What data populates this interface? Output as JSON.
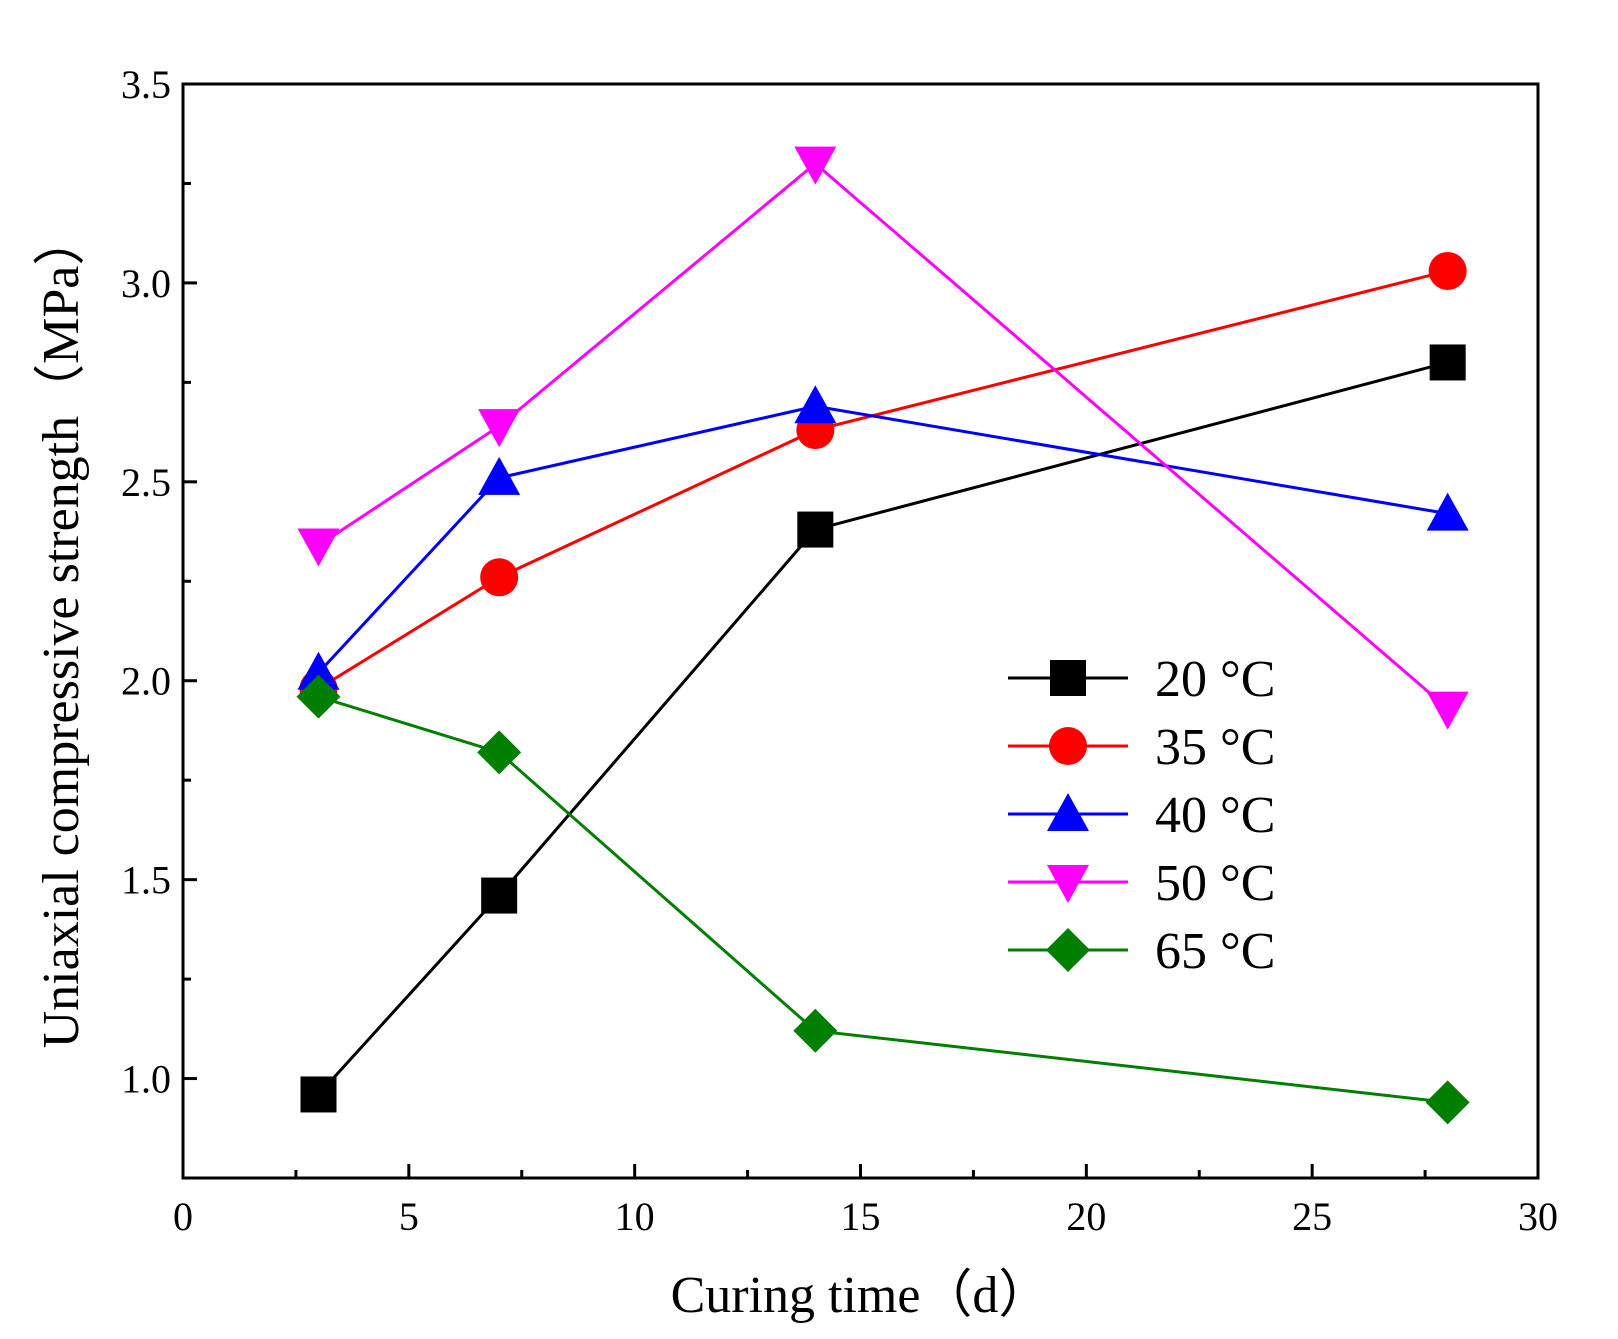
{
  "chart_data": {
    "type": "line",
    "title": "",
    "xlabel": "Curing time（d）",
    "ylabel": "Uniaxial compressive strength（MPa）",
    "xlim": [
      0,
      30
    ],
    "ylim": [
      0.75,
      3.5
    ],
    "x_ticks": [
      0,
      5,
      10,
      15,
      20,
      25,
      30
    ],
    "x_tick_labels": [
      "0",
      "5",
      "10",
      "15",
      "20",
      "25",
      "30"
    ],
    "y_ticks": [
      1.0,
      1.5,
      2.0,
      2.5,
      3.0,
      3.5
    ],
    "y_tick_labels": [
      "1.0",
      "1.5",
      "2.0",
      "2.5",
      "3.0",
      "3.5"
    ],
    "grid": false,
    "legend_position": "right",
    "x": [
      3,
      7,
      14,
      28
    ],
    "series": [
      {
        "name": "20 °C",
        "color": "#000000",
        "marker": "square",
        "values": [
          0.96,
          1.46,
          2.38,
          2.8
        ]
      },
      {
        "name": "35 °C",
        "color": "#ff0000",
        "marker": "circle",
        "values": [
          1.98,
          2.26,
          2.63,
          3.03
        ]
      },
      {
        "name": "40 °C",
        "color": "#0000ff",
        "marker": "triangle-up",
        "values": [
          2.02,
          2.51,
          2.69,
          2.42
        ]
      },
      {
        "name": "50 °C",
        "color": "#ff00ff",
        "marker": "triangle-down",
        "values": [
          2.34,
          2.64,
          3.3,
          1.93
        ]
      },
      {
        "name": "65 °C",
        "color": "#007f00",
        "marker": "diamond",
        "values": [
          1.96,
          1.82,
          1.12,
          0.94
        ]
      }
    ]
  }
}
